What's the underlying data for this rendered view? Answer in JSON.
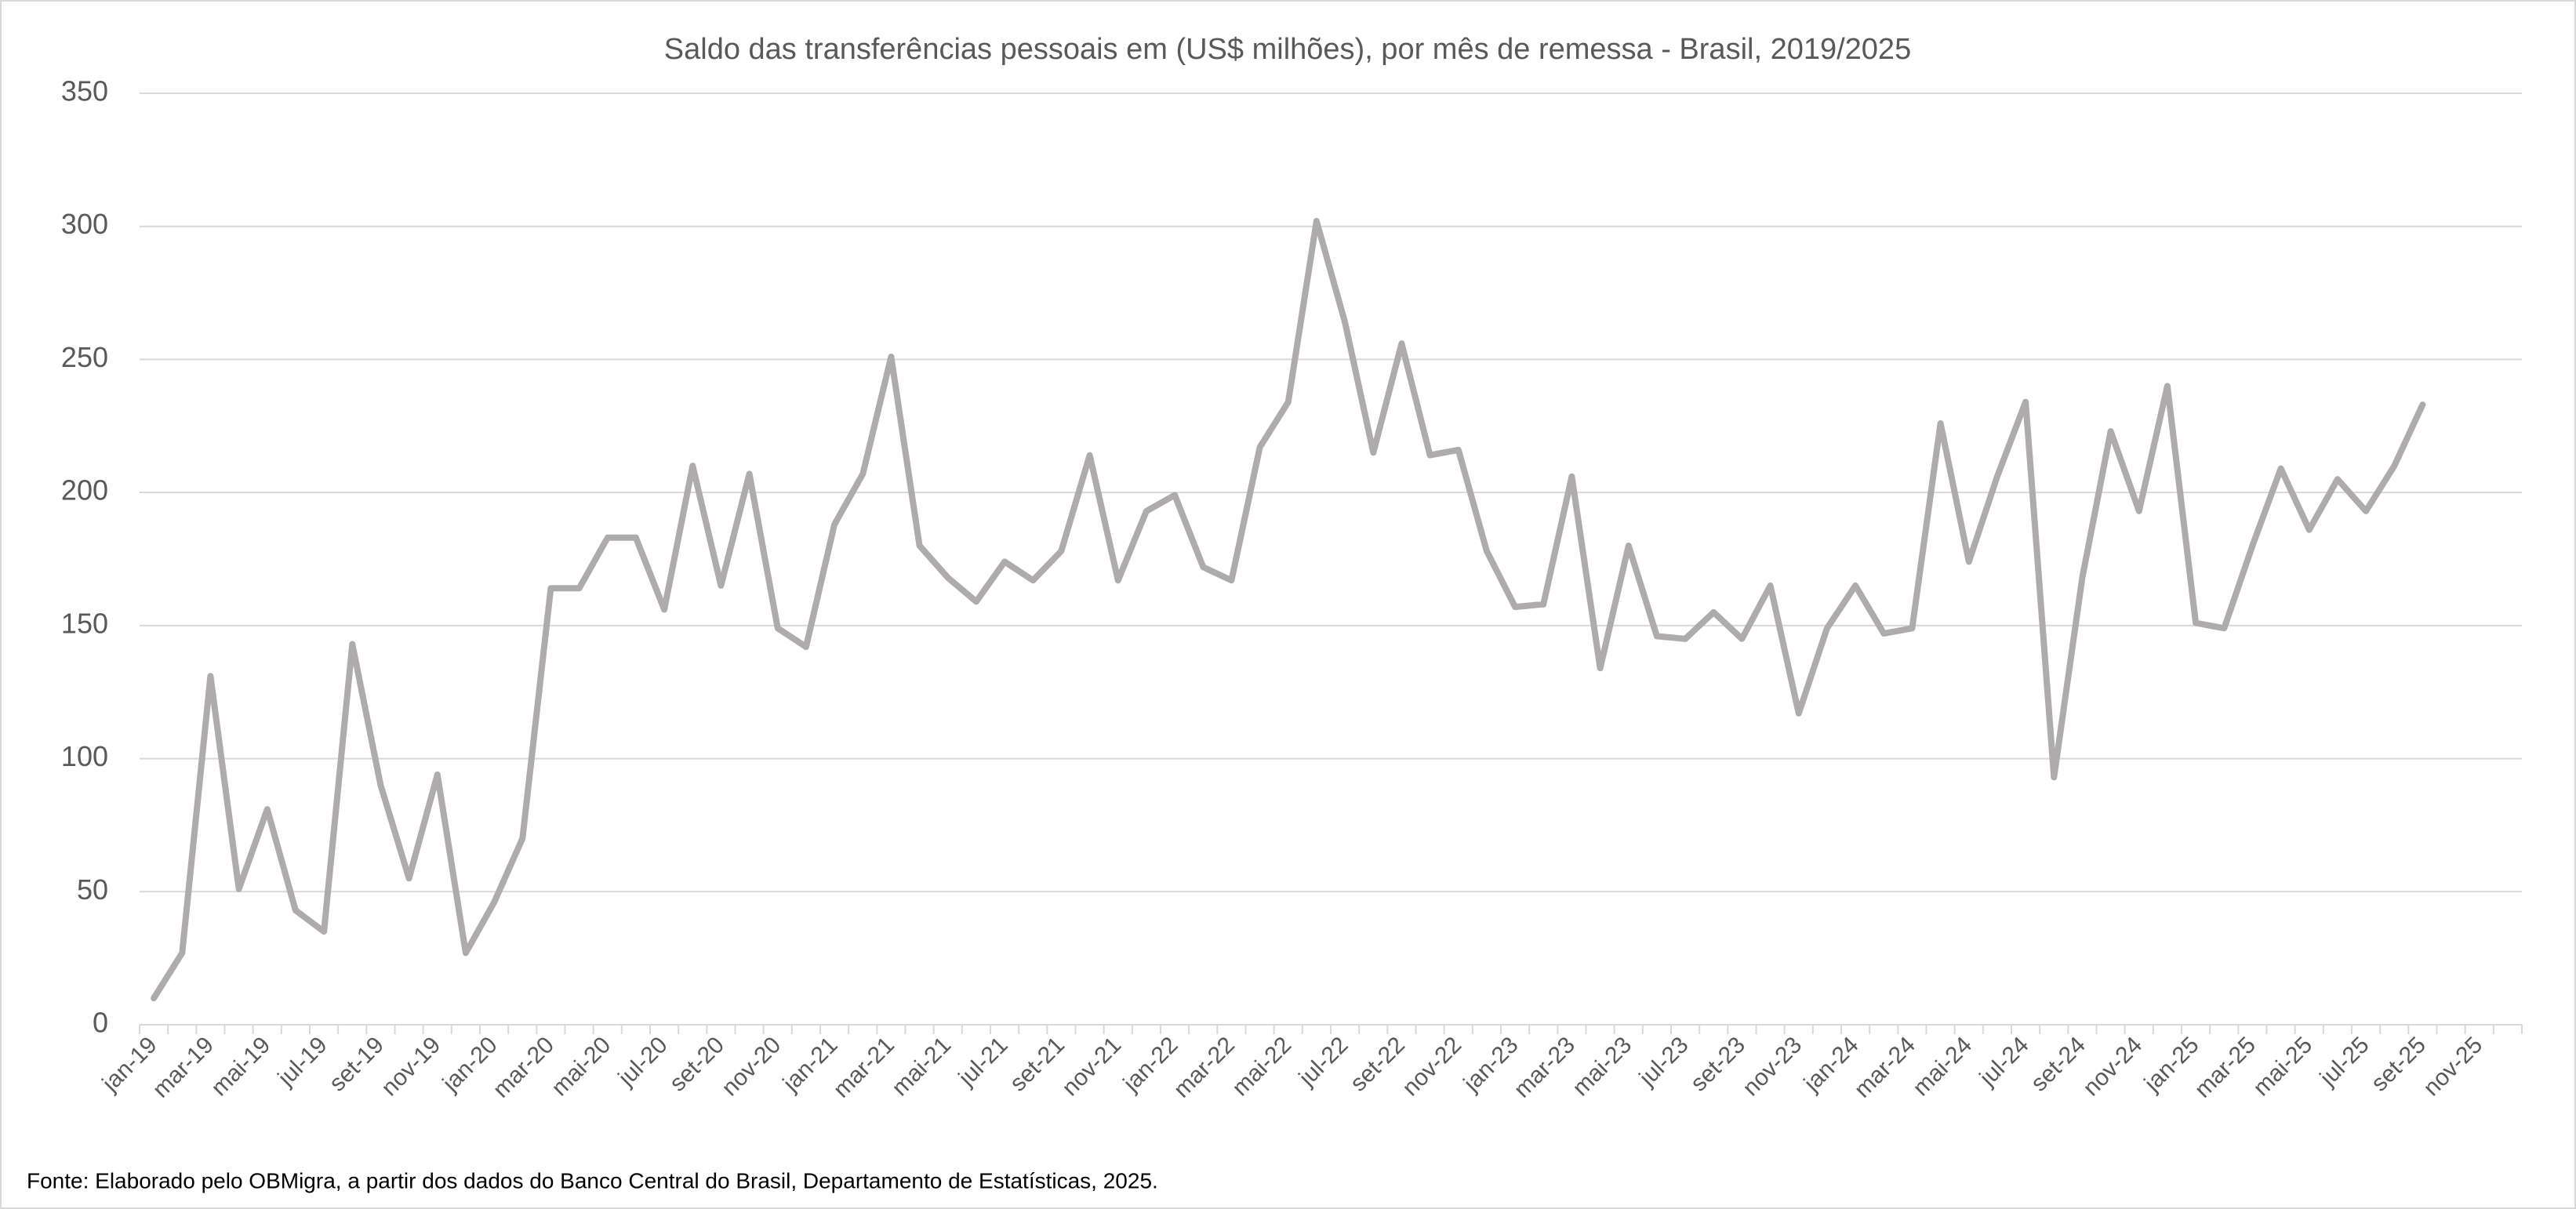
{
  "chart_data": {
    "type": "line",
    "title": "Saldo das transferências pessoais em (US$ milhões), por mês de remessa - Brasil, 2019/2025",
    "source": "Fonte:  Elaborado pelo OBMigra, a partir dos dados do Banco Central do Brasil, Departamento de Estatísticas, 2025.",
    "categories": [
      "jan-19",
      null,
      "mar-19",
      null,
      "mai-19",
      null,
      "jul-19",
      null,
      "set-19",
      null,
      "nov-19",
      null,
      "jan-20",
      null,
      "mar-20",
      null,
      "mai-20",
      null,
      "jul-20",
      null,
      "set-20",
      null,
      "nov-20",
      null,
      "jan-21",
      null,
      "mar-21",
      null,
      "mai-21",
      null,
      "jul-21",
      null,
      "set-21",
      null,
      "nov-21",
      null,
      "jan-22",
      null,
      "mar-22",
      null,
      "mai-22",
      null,
      "jul-22",
      null,
      "set-22",
      null,
      "nov-22",
      null,
      "jan-23",
      null,
      "mar-23",
      null,
      "mai-23",
      null,
      "jul-23",
      null,
      "set-23",
      null,
      "nov-23",
      null,
      "jan-24",
      null,
      "mar-24",
      null,
      "mai-24",
      null,
      "jul-24",
      null,
      "set-24",
      null,
      "nov-24",
      null,
      "jan-25",
      null,
      "mar-25",
      null,
      "mai-25",
      null,
      "jul-25",
      null,
      "set-25",
      null,
      "nov-25",
      null
    ],
    "values": [
      10,
      27,
      131,
      51,
      81,
      43,
      35,
      143,
      90,
      55,
      94,
      27,
      46,
      70,
      164,
      164,
      183,
      183,
      156,
      210,
      165,
      207,
      149,
      142,
      188,
      207,
      251,
      180,
      168,
      159,
      174,
      167,
      178,
      214,
      167,
      193,
      199,
      172,
      167,
      217,
      234,
      302,
      264,
      215,
      256,
      214,
      216,
      178,
      157,
      158,
      206,
      134,
      180,
      146,
      145,
      155,
      145,
      165,
      117,
      149,
      165,
      147,
      149,
      226,
      174,
      206,
      234,
      93,
      168,
      223,
      193,
      240,
      151,
      149,
      180,
      209,
      186,
      205,
      193,
      210,
      233,
      null,
      null,
      null
    ],
    "color": "#aeabac",
    "ylim": [
      0,
      350
    ],
    "yticks": [
      0,
      50,
      100,
      150,
      200,
      250,
      300,
      350
    ],
    "grid": true
  }
}
